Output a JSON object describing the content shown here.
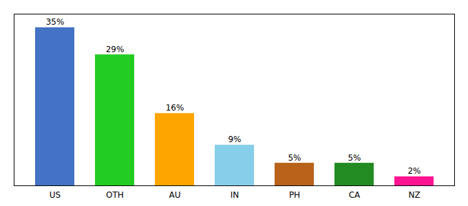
{
  "chart_data": {
    "type": "bar",
    "categories": [
      "US",
      "OTH",
      "AU",
      "IN",
      "PH",
      "CA",
      "NZ"
    ],
    "values": [
      35,
      29,
      16,
      9,
      5,
      5,
      2
    ],
    "value_labels": [
      "35%",
      "29%",
      "16%",
      "9%",
      "5%",
      "5%",
      "2%"
    ],
    "colors": [
      "#4472c4",
      "#22cc22",
      "#ffa500",
      "#87ceeb",
      "#b8621a",
      "#228b22",
      "#ff1493"
    ],
    "ylim": [
      0,
      38
    ],
    "yticks": [],
    "data_labels": true,
    "tick_labels": "x",
    "grid": false
  }
}
